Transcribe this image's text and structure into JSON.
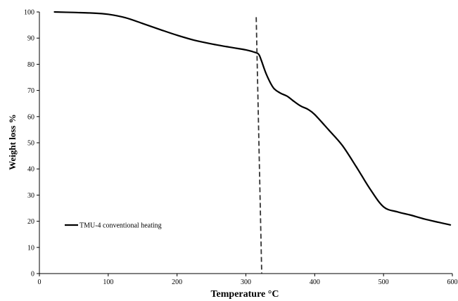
{
  "chart_data": {
    "type": "line",
    "title": "",
    "xlabel": "Temperature °C",
    "ylabel": "Weight loss %",
    "xlim": [
      0,
      600
    ],
    "ylim": [
      0,
      100
    ],
    "xticks": [
      0,
      100,
      200,
      300,
      400,
      500,
      600
    ],
    "yticks": [
      0,
      10,
      20,
      30,
      40,
      50,
      60,
      70,
      80,
      90,
      100
    ],
    "xtick_labels": [
      "0",
      "100",
      "200",
      "300",
      "400",
      "500",
      "600"
    ],
    "ytick_labels": [
      "0",
      "10",
      "20",
      "30",
      "40",
      "50",
      "60",
      "70",
      "80",
      "90",
      "100"
    ],
    "grid": false,
    "legend_position": "left",
    "series": [
      {
        "name": "TMU-4 conventional heating",
        "color": "#000000",
        "x": [
          22,
          50,
          75,
          100,
          125,
          150,
          175,
          200,
          225,
          250,
          275,
          300,
          310,
          318,
          322,
          330,
          340,
          350,
          360,
          370,
          380,
          390,
          400,
          420,
          440,
          460,
          480,
          500,
          520,
          540,
          560,
          580,
          597
        ],
        "y": [
          100,
          99.8,
          99.6,
          99.1,
          97.8,
          95.6,
          93.3,
          91.1,
          89.2,
          87.8,
          86.6,
          85.5,
          84.8,
          84.0,
          81.8,
          76.0,
          71.0,
          69.0,
          67.8,
          65.8,
          64.0,
          62.8,
          60.8,
          55.0,
          49.0,
          41.0,
          32.5,
          25.5,
          23.6,
          22.3,
          20.8,
          19.6,
          18.6
        ]
      }
    ],
    "reference_line": {
      "x_start": 315,
      "x_end": 323,
      "y_start": 98,
      "y_end": 0,
      "style": "dashed"
    }
  }
}
